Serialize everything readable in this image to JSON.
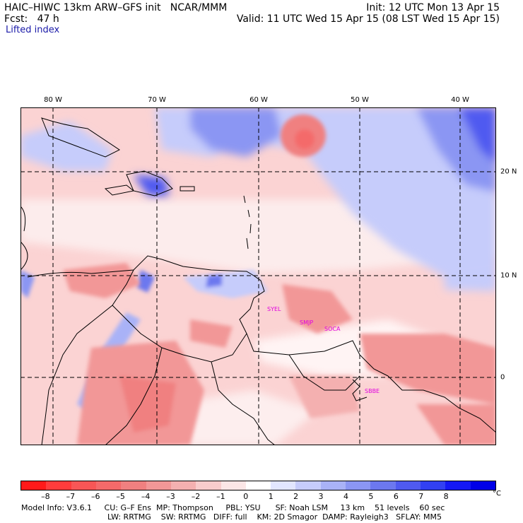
{
  "header": {
    "model_line": "HAIC–HIWC 13km ARW–GFS init   NCAR/MMM",
    "forecast_line": "Fcst:   47 h",
    "field_name": "Lifted index",
    "init_line": "Init: 12 UTC Mon 13 Apr 15",
    "valid_line": "Valid: 11 UTC Wed 15 Apr 15 (08 LST Wed 15 Apr 15)"
  },
  "map": {
    "lon_labels": [
      "80 W",
      "70 W",
      "60 W",
      "50 W",
      "40 W"
    ],
    "lat_labels": [
      "20 N",
      "10 N",
      "0"
    ],
    "stations": [
      "SYEL",
      "SMJP",
      "SOCA",
      "SBBE"
    ],
    "colors": {
      "deep_red": "#ff0000",
      "pink": "#fbd3d3",
      "light_blue": "#d0d8ff",
      "deep_blue": "#1414ff"
    }
  },
  "colorbar": {
    "ticks": [
      "–8",
      "–7",
      "–6",
      "–5",
      "–4",
      "–3",
      "–2",
      "–1",
      "0",
      "1",
      "2",
      "3",
      "4",
      "5",
      "6",
      "7",
      "8"
    ],
    "unit": "°C",
    "colors": [
      "#ff1a1a",
      "#ff3c3c",
      "#f85656",
      "#f46a6a",
      "#f08080",
      "#f29797",
      "#f4b0b0",
      "#f8cccc",
      "#fbe6e6",
      "#ffffff",
      "#e2e6ff",
      "#c6ccfb",
      "#a9b2f7",
      "#8b96f3",
      "#6c78ef",
      "#4f5af0",
      "#3240f2",
      "#1418f5",
      "#0000e8"
    ]
  },
  "footer": {
    "line1": "Model Info: V3.6.1     CU: G–F Ens  MP: Thompson     PBL: YSU      SF: Noah LSM     13 km    51 levels    60 sec",
    "line2": "LW: RRTMG    SW: RRTMG   DIFF: full    KM: 2D Smagor  DAMP: Rayleigh3   SFLAY: MM5"
  }
}
